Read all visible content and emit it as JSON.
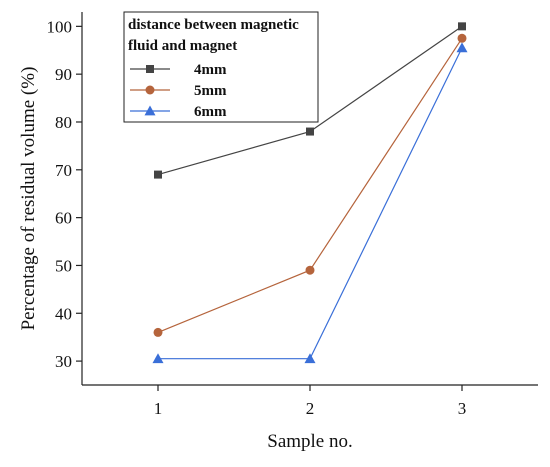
{
  "chart_data": {
    "type": "line",
    "xlabel": "Sample no.",
    "ylabel": "Percentage of residual volume (%)",
    "x": [
      1,
      2,
      3
    ],
    "xticks": [
      "1",
      "2",
      "3"
    ],
    "xlim": [
      0.5,
      3.5
    ],
    "ylim": [
      25,
      103
    ],
    "yticks": [
      "30",
      "40",
      "50",
      "60",
      "70",
      "80",
      "90",
      "100"
    ],
    "grid": false,
    "legend": {
      "title_line1": "distance between magnetic",
      "title_line2": "fluid and magnet",
      "placement": "top-left"
    },
    "series": [
      {
        "name": "4mm",
        "values": [
          69,
          78,
          100
        ],
        "color": "#444444",
        "marker": "square"
      },
      {
        "name": "5mm",
        "values": [
          36,
          49,
          97.5
        ],
        "color": "#b5643c",
        "marker": "circle"
      },
      {
        "name": "6mm",
        "values": [
          30.5,
          30.5,
          95.5
        ],
        "color": "#3a6fd8",
        "marker": "triangle"
      }
    ]
  }
}
